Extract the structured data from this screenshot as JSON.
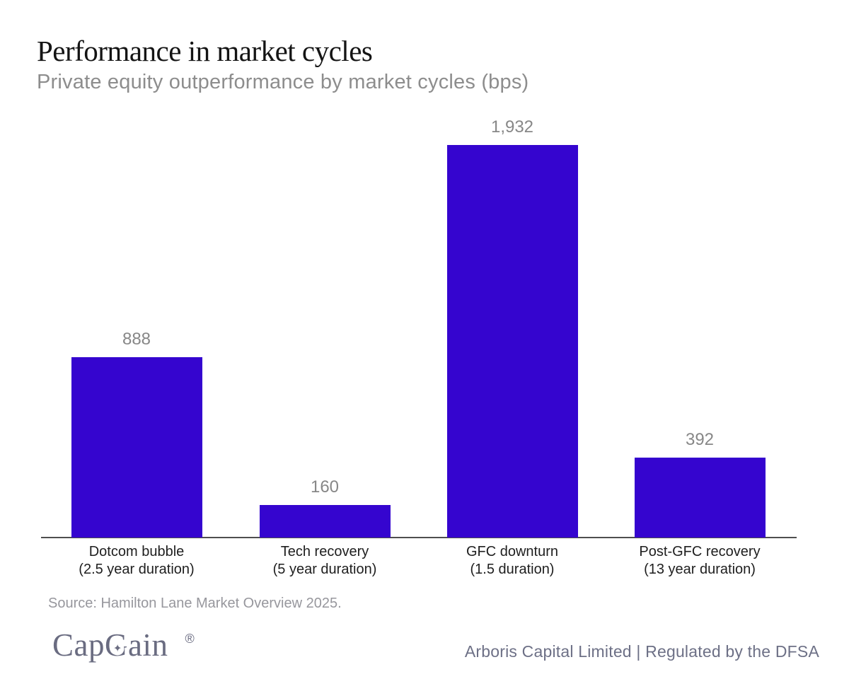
{
  "header": {
    "title": "Performance in market cycles",
    "subtitle": "Private equity outperformance by market cycles (bps)"
  },
  "chart_data": {
    "type": "bar",
    "title": "Performance in market cycles",
    "subtitle": "Private equity outperformance by market cycles (bps)",
    "unit": "bps",
    "categories": [
      "Dotcom bubble",
      "Tech recovery",
      "GFC downturn",
      "Post-GFC recovery"
    ],
    "category_sublabels": [
      "(2.5 year duration)",
      "(5 year duration)",
      "(1.5 duration)",
      "(13 year duration)"
    ],
    "values": [
      888,
      160,
      1932,
      392
    ],
    "value_labels": [
      "888",
      "160",
      "1,932",
      "392"
    ],
    "ylim": [
      0,
      1932
    ],
    "grid": false,
    "legend": false,
    "bar_color": "#3505CF",
    "value_label_color": "#878787",
    "category_label_color": "#1e1e1e",
    "axis_line_color": "#4f4f4f"
  },
  "source": {
    "text": "Source: Hamilton Lane Market Overview 2025."
  },
  "footer": {
    "logo_part1": "Cap",
    "logo_g": "G",
    "logo_star_glyph": "✦",
    "registered_mark": "®",
    "logo_color": "#6a6c81",
    "right_text": "Arboris Capital Limited | Regulated by the DFSA",
    "right_text_color": "#6d7086"
  }
}
